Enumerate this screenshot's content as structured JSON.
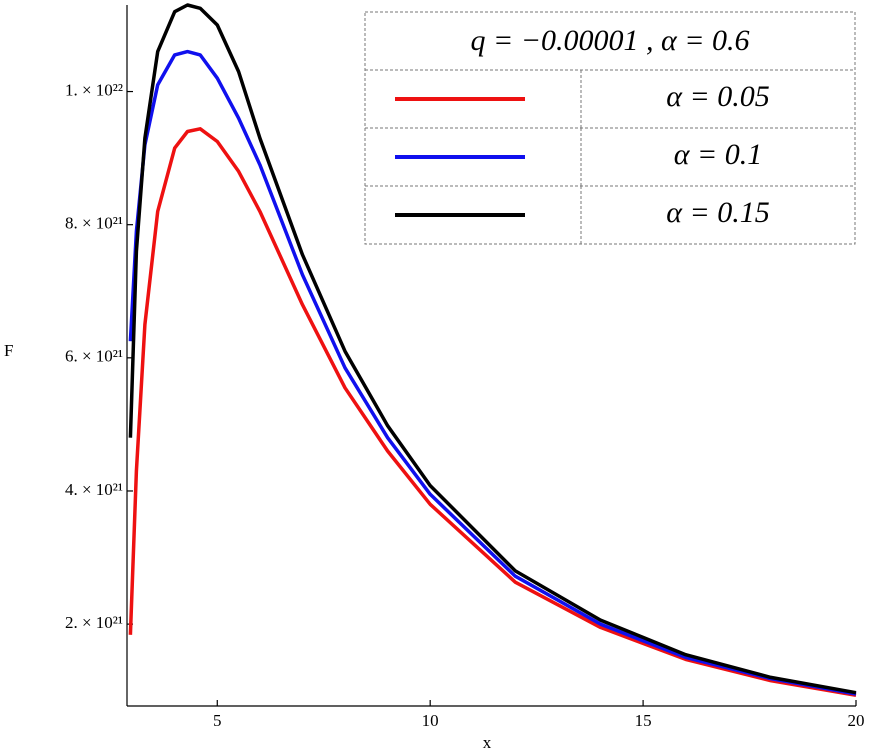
{
  "chart_data": {
    "type": "line",
    "xlabel": "x",
    "ylabel": "F",
    "legend_title": "q = −0.00001  , α = 0.6",
    "x": [
      2.96,
      3.1,
      3.3,
      3.6,
      4,
      4.3,
      4.6,
      5,
      5.5,
      6,
      7,
      8,
      9,
      10,
      12,
      14,
      16,
      18,
      20
    ],
    "series": [
      {
        "name": "α = 0.05",
        "color": "#ee1111",
        "values": [
          1.84e+21,
          4.3e+21,
          6.5e+21,
          8.2e+21,
          9.15e+21,
          9.4e+21,
          9.44e+21,
          9.25e+21,
          8.8e+21,
          8.2e+21,
          6.8e+21,
          5.55e+21,
          4.6e+21,
          3.8e+21,
          2.63e+21,
          1.95e+21,
          1.47e+21,
          1.15e+21,
          9.3e+20
        ]
      },
      {
        "name": "α = 0.1",
        "color": "#1010ee",
        "values": [
          6.25e+21,
          7.9e+21,
          9.2e+21,
          1.01e+22,
          1.055e+22,
          1.06e+22,
          1.055e+22,
          1.02e+22,
          9.6e+21,
          8.9e+21,
          7.25e+21,
          5.85e+21,
          4.8e+21,
          3.95e+21,
          2.72e+21,
          2e+21,
          1.5e+21,
          1.18e+21,
          9.5e+20
        ]
      },
      {
        "name": "α = 0.15",
        "color": "#000000",
        "values": [
          4.8e+21,
          7.6e+21,
          9.3e+21,
          1.06e+22,
          1.12e+22,
          1.13e+22,
          1.125e+22,
          1.1e+22,
          1.03e+22,
          9.3e+21,
          7.55e+21,
          6.1e+21,
          4.98e+21,
          4.08e+21,
          2.8e+21,
          2.06e+21,
          1.54e+21,
          1.2e+21,
          9.7e+20
        ]
      }
    ],
    "xlim": [
      2.88,
      20
    ],
    "ylim": [
      7.7e+20,
      1.13e+22
    ],
    "xticks": [
      5,
      10,
      15,
      20
    ],
    "yticks": [
      {
        "value": 2e+21,
        "label": "2. × 10²¹"
      },
      {
        "value": 4e+21,
        "label": "4. × 10²¹"
      },
      {
        "value": 6e+21,
        "label": "6. × 10²¹"
      },
      {
        "value": 8e+21,
        "label": "8. × 10²¹"
      },
      {
        "value": 1e+22,
        "label": "1. × 10²²"
      }
    ]
  }
}
